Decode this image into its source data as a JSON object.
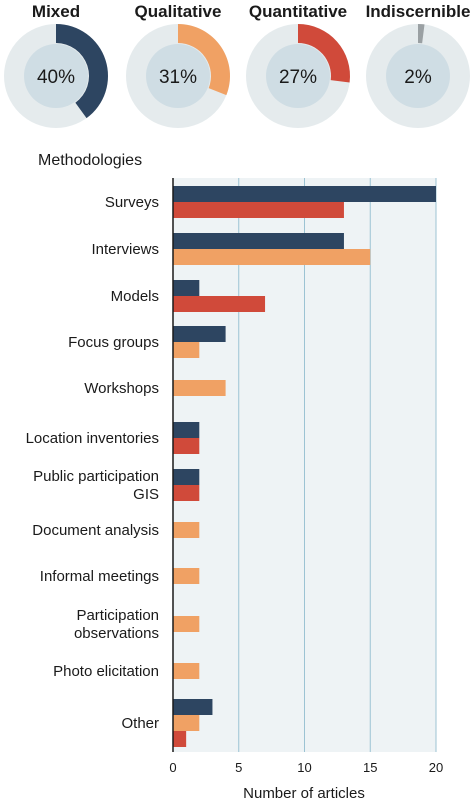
{
  "colors": {
    "mixed": "#2d4561",
    "qualitative": "#f0a164",
    "quantitative": "#d04a3a",
    "indiscernible": "#9aa0a3",
    "ring_track": "#e5ebed",
    "inner_disc": "#cfdde4",
    "plot_bg": "#eef3f5",
    "gridline": "#9cc3d3"
  },
  "summary": {
    "items": [
      {
        "key": "mixed",
        "label": "Mixed",
        "percent": 40,
        "percent_text": "40%"
      },
      {
        "key": "qualitative",
        "label": "Qualitative",
        "percent": 31,
        "percent_text": "31%"
      },
      {
        "key": "quantitative",
        "label": "Quantitative",
        "percent": 27,
        "percent_text": "27%"
      },
      {
        "key": "indiscernible",
        "label": "Indiscernible",
        "percent": 2,
        "percent_text": "2%"
      }
    ]
  },
  "chart_data": {
    "type": "bar",
    "orientation": "horizontal",
    "title": "Methodologies",
    "xlabel": "Number of articles",
    "xlim": [
      0,
      20
    ],
    "xticks": [
      0,
      5,
      10,
      15,
      20
    ],
    "grid": true,
    "categories": [
      {
        "label_lines": [
          "Surveys"
        ],
        "bars": [
          {
            "series": "mixed",
            "value": 20
          },
          {
            "series": "quantitative",
            "value": 13
          }
        ]
      },
      {
        "label_lines": [
          "Interviews"
        ],
        "bars": [
          {
            "series": "mixed",
            "value": 13
          },
          {
            "series": "qualitative",
            "value": 15
          }
        ]
      },
      {
        "label_lines": [
          "Models"
        ],
        "bars": [
          {
            "series": "mixed",
            "value": 2
          },
          {
            "series": "quantitative",
            "value": 7
          }
        ]
      },
      {
        "label_lines": [
          "Focus groups"
        ],
        "bars": [
          {
            "series": "mixed",
            "value": 4
          },
          {
            "series": "qualitative",
            "value": 2
          }
        ]
      },
      {
        "label_lines": [
          "Workshops"
        ],
        "bars": [
          {
            "series": "qualitative",
            "value": 4
          }
        ]
      },
      {
        "label_lines": [
          "Location inventories"
        ],
        "bars": [
          {
            "series": "mixed",
            "value": 2
          },
          {
            "series": "quantitative",
            "value": 2
          }
        ]
      },
      {
        "label_lines": [
          "Public participation",
          "GIS"
        ],
        "bars": [
          {
            "series": "mixed",
            "value": 2
          },
          {
            "series": "quantitative",
            "value": 2
          }
        ]
      },
      {
        "label_lines": [
          "Document analysis"
        ],
        "bars": [
          {
            "series": "qualitative",
            "value": 2
          }
        ]
      },
      {
        "label_lines": [
          "Informal meetings"
        ],
        "bars": [
          {
            "series": "qualitative",
            "value": 2
          }
        ]
      },
      {
        "label_lines": [
          "Participation",
          "observations"
        ],
        "bars": [
          {
            "series": "qualitative",
            "value": 2
          }
        ]
      },
      {
        "label_lines": [
          "Photo elicitation"
        ],
        "bars": [
          {
            "series": "qualitative",
            "value": 2
          }
        ]
      },
      {
        "label_lines": [
          "Other"
        ],
        "bars": [
          {
            "series": "mixed",
            "value": 3
          },
          {
            "series": "qualitative",
            "value": 2
          },
          {
            "series": "quantitative",
            "value": 1
          }
        ]
      }
    ]
  }
}
